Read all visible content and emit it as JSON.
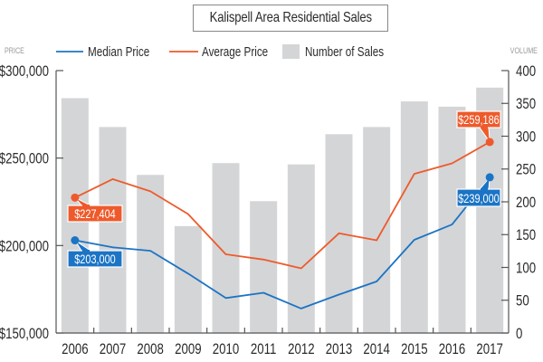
{
  "chart_data": {
    "type": "bar+line",
    "title": "Kalispell Area Residential Sales",
    "left_axis": {
      "label": "PRICE",
      "range": [
        150000,
        300000
      ],
      "ticks": [
        "$150,000",
        "$200,000",
        "$250,000",
        "$300,000"
      ],
      "tick_values": [
        150000,
        200000,
        250000,
        300000
      ]
    },
    "right_axis": {
      "label": "VOLUME",
      "range": [
        0,
        400
      ],
      "ticks": [
        "0",
        "50",
        "100",
        "150",
        "200",
        "250",
        "300",
        "350",
        "400"
      ],
      "tick_values": [
        0,
        50,
        100,
        150,
        200,
        250,
        300,
        350,
        400
      ]
    },
    "categories": [
      "2006",
      "2007",
      "2008",
      "2009",
      "2010",
      "2011",
      "2012",
      "2013",
      "2014",
      "2015",
      "2016",
      "2017"
    ],
    "series": [
      {
        "name": "Median Price",
        "type": "line",
        "axis": "left",
        "color": "#1b74c5",
        "values": [
          203000,
          199000,
          197000,
          184000,
          170000,
          173000,
          164000,
          172000,
          179500,
          203300,
          212000,
          239000
        ]
      },
      {
        "name": "Average Price",
        "type": "line",
        "axis": "left",
        "color": "#ee5a2b",
        "values": [
          227404,
          238000,
          231000,
          218000,
          195000,
          192000,
          187000,
          207000,
          203000,
          241000,
          247000,
          259186
        ]
      },
      {
        "name": "Number of Sales",
        "type": "bar",
        "axis": "right",
        "color": "#d4d5d7",
        "values": [
          358,
          314,
          241,
          163,
          259,
          201,
          257,
          303,
          314,
          353,
          345,
          374
        ]
      }
    ],
    "annotations": [
      {
        "series": "Average Price",
        "category": "2006",
        "text": "$227,404"
      },
      {
        "series": "Median Price",
        "category": "2006",
        "text": "$203,000"
      },
      {
        "series": "Average Price",
        "category": "2017",
        "text": "$259,186"
      },
      {
        "series": "Median Price",
        "category": "2017",
        "text": "$239,000"
      }
    ],
    "legend": {
      "position": "top",
      "entries": [
        "Median Price",
        "Average Price",
        "Number of Sales"
      ]
    },
    "grid": false
  }
}
